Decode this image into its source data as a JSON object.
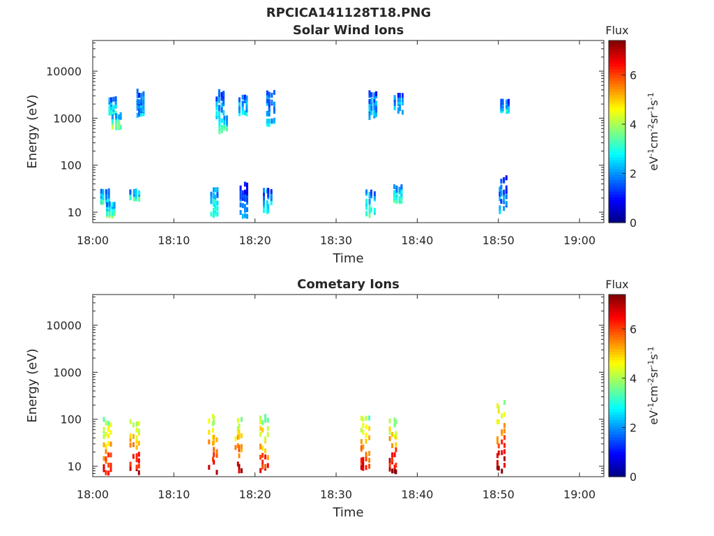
{
  "chart_data": [
    {
      "type": "heatmap",
      "figure_title": "RPCICA141128T18.PNG",
      "title": "Solar Wind Ions",
      "xlabel": "Time",
      "ylabel": "Energy (eV)",
      "x_ticks": [
        "18:00",
        "18:10",
        "18:20",
        "18:30",
        "18:40",
        "18:50",
        "19:00"
      ],
      "x_range": [
        "18:00",
        "19:03"
      ],
      "y_scale": "log",
      "y_ticks": [
        10,
        100,
        1000,
        10000
      ],
      "y_tick_labels": [
        "10",
        "100",
        "1000",
        "10000"
      ],
      "ylim": [
        6,
        45000
      ],
      "colorbar": {
        "title": "Flux",
        "label": "eV-1cm-2sr-1s-1",
        "ticks": [
          0,
          2,
          4,
          6
        ],
        "range": [
          0,
          7.4
        ],
        "colormap": "jet"
      },
      "bursts": [
        {
          "time_min": 1.5,
          "emin": 15,
          "emax": 28,
          "flux": 3.2
        },
        {
          "time_min": 2.3,
          "emin": 8,
          "emax": 15,
          "flux": 3.8
        },
        {
          "time_min": 2.5,
          "emin": 1200,
          "emax": 2600,
          "flux": 3.0
        },
        {
          "time_min": 3.0,
          "emin": 600,
          "emax": 1200,
          "flux": 4.0
        },
        {
          "time_min": 5.2,
          "emin": 17,
          "emax": 28,
          "flux": 3.5
        },
        {
          "time_min": 5.9,
          "emin": 1100,
          "emax": 3800,
          "flux": 2.4
        },
        {
          "time_min": 15.0,
          "emin": 8,
          "emax": 30,
          "flux": 3.4
        },
        {
          "time_min": 15.7,
          "emin": 1000,
          "emax": 3800,
          "flux": 2.6
        },
        {
          "time_min": 16.2,
          "emin": 500,
          "emax": 1000,
          "flux": 3.8
        },
        {
          "time_min": 18.6,
          "emin": 1200,
          "emax": 3000,
          "flux": 2.7
        },
        {
          "time_min": 18.7,
          "emin": 8,
          "emax": 40,
          "flux": 2.0
        },
        {
          "time_min": 21.6,
          "emin": 10,
          "emax": 30,
          "flux": 2.8
        },
        {
          "time_min": 22.0,
          "emin": 700,
          "emax": 3800,
          "flux": 2.5
        },
        {
          "time_min": 34.3,
          "emin": 8,
          "emax": 30,
          "flux": 3.3
        },
        {
          "time_min": 34.6,
          "emin": 1000,
          "emax": 3500,
          "flux": 2.5
        },
        {
          "time_min": 37.6,
          "emin": 16,
          "emax": 35,
          "flux": 3.4
        },
        {
          "time_min": 37.8,
          "emin": 1300,
          "emax": 3200,
          "flux": 2.6
        },
        {
          "time_min": 50.6,
          "emin": 10,
          "emax": 55,
          "flux": 2.2
        },
        {
          "time_min": 50.8,
          "emin": 1300,
          "emax": 2300,
          "flux": 2.9
        }
      ]
    },
    {
      "type": "heatmap",
      "title": "Cometary Ions",
      "xlabel": "Time",
      "ylabel": "Energy (eV)",
      "x_ticks": [
        "18:00",
        "18:10",
        "18:20",
        "18:30",
        "18:40",
        "18:50",
        "19:00"
      ],
      "x_range": [
        "18:00",
        "19:03"
      ],
      "y_scale": "log",
      "y_ticks": [
        10,
        100,
        1000,
        10000
      ],
      "y_tick_labels": [
        "10",
        "100",
        "1000",
        "10000"
      ],
      "ylim": [
        6,
        45000
      ],
      "colorbar": {
        "title": "Flux",
        "label": "eV-1cm-2sr-1s-1",
        "ticks": [
          0,
          2,
          4,
          6
        ],
        "range": [
          0,
          7.4
        ],
        "colormap": "jet"
      },
      "bursts": [
        {
          "time_min": 1.8,
          "emin": 7,
          "emax": 110,
          "flux": 6.6
        },
        {
          "time_min": 5.2,
          "emin": 7,
          "emax": 90,
          "flux": 7.0
        },
        {
          "time_min": 14.9,
          "emin": 7,
          "emax": 120,
          "flux": 7.0
        },
        {
          "time_min": 18.0,
          "emin": 7,
          "emax": 110,
          "flux": 7.0
        },
        {
          "time_min": 21.2,
          "emin": 7,
          "emax": 130,
          "flux": 6.6
        },
        {
          "time_min": 33.6,
          "emin": 7,
          "emax": 110,
          "flux": 6.8
        },
        {
          "time_min": 37.0,
          "emin": 7,
          "emax": 100,
          "flux": 7.0
        },
        {
          "time_min": 50.3,
          "emin": 7,
          "emax": 230,
          "flux": 7.2
        }
      ]
    }
  ]
}
